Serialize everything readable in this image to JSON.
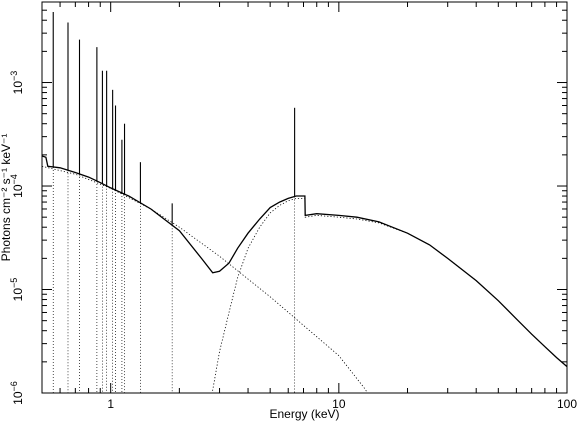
{
  "chart_data": {
    "type": "line",
    "title": "",
    "xlabel": "Energy (keV)",
    "ylabel": "Photons cm⁻² s⁻¹ keV⁻¹",
    "xscale": "log",
    "yscale": "log",
    "xlim": [
      0.5,
      100
    ],
    "ylim": [
      1e-06,
      0.006
    ],
    "grid": false,
    "legend": "none",
    "x_ticks": [
      {
        "value": 1,
        "label": "1"
      },
      {
        "value": 10,
        "label": "10"
      },
      {
        "value": 100,
        "label": "100"
      }
    ],
    "y_ticks": [
      {
        "value": 1e-06,
        "base": "10",
        "exp": "−6"
      },
      {
        "value": 1e-05,
        "base": "10",
        "exp": "−5"
      },
      {
        "value": 0.0001,
        "base": "10",
        "exp": "−4"
      },
      {
        "value": 0.001,
        "base": "10",
        "exp": "−3"
      }
    ],
    "series": [
      {
        "style": "solid",
        "color": "#000000",
        "points": [
          [
            0.5,
            0.000195
          ],
          [
            0.52,
            0.00019
          ],
          [
            0.53,
            0.000155
          ],
          [
            0.6,
            0.00015
          ],
          [
            0.7,
            0.000135
          ],
          [
            0.8,
            0.000122
          ],
          [
            0.9,
            0.000108
          ],
          [
            1.0,
            9.6e-05
          ],
          [
            1.2,
            8e-05
          ],
          [
            1.5,
            6e-05
          ],
          [
            2.0,
            3.7e-05
          ],
          [
            2.5,
            2e-05
          ],
          [
            2.8,
            1.45e-05
          ],
          [
            3.0,
            1.5e-05
          ],
          [
            3.3,
            1.8e-05
          ],
          [
            3.6,
            2.5e-05
          ],
          [
            4.0,
            3.5e-05
          ],
          [
            4.5,
            4.8e-05
          ],
          [
            5.0,
            6.2e-05
          ],
          [
            5.5,
            7e-05
          ],
          [
            6.0,
            7.6e-05
          ],
          [
            6.5,
            8e-05
          ],
          [
            7.1,
            8e-05
          ],
          [
            7.12,
            5.2e-05
          ],
          [
            8.0,
            5.4e-05
          ],
          [
            10.0,
            5.2e-05
          ],
          [
            12.0,
            5e-05
          ],
          [
            15.0,
            4.5e-05
          ],
          [
            20.0,
            3.5e-05
          ],
          [
            25.0,
            2.7e-05
          ],
          [
            30.0,
            2e-05
          ],
          [
            40.0,
            1.22e-05
          ],
          [
            50.0,
            7.8e-06
          ],
          [
            60.0,
            5.2e-06
          ],
          [
            70.0,
            3.7e-06
          ],
          [
            80.0,
            2.8e-06
          ],
          [
            90.0,
            2.2e-06
          ],
          [
            100.0,
            1.8e-06
          ]
        ]
      },
      {
        "style": "dotted",
        "color": "#000000",
        "points": [
          [
            0.5,
            0.000155
          ],
          [
            0.7,
            0.00013
          ],
          [
            1.0,
            9.5e-05
          ],
          [
            1.5,
            6e-05
          ],
          [
            2.0,
            4e-05
          ],
          [
            3.0,
            2.1e-05
          ],
          [
            5.0,
            8.5e-06
          ],
          [
            7.0,
            4.5e-06
          ],
          [
            10.0,
            2.3e-06
          ],
          [
            13.0,
            1.1e-06
          ],
          [
            14.0,
            8.5e-07
          ]
        ]
      },
      {
        "style": "dotted",
        "color": "#000000",
        "points": [
          [
            2.75,
            8.5e-07
          ],
          [
            3.0,
            2.5e-06
          ],
          [
            3.3,
            6e-06
          ],
          [
            3.6,
            1.3e-05
          ],
          [
            4.0,
            2.5e-05
          ],
          [
            4.5,
            4e-05
          ],
          [
            5.0,
            5.5e-05
          ],
          [
            5.5,
            6.5e-05
          ],
          [
            6.0,
            7.2e-05
          ],
          [
            6.5,
            7.6e-05
          ],
          [
            7.1,
            7.6e-05
          ],
          [
            7.12,
            5e-05
          ],
          [
            8.0,
            5.2e-05
          ],
          [
            10.0,
            5e-05
          ],
          [
            12.0,
            4.8e-05
          ],
          [
            15.0,
            4.4e-05
          ],
          [
            20.0,
            3.5e-05
          ],
          [
            25.0,
            2.7e-05
          ],
          [
            30.0,
            2e-05
          ],
          [
            40.0,
            1.22e-05
          ],
          [
            50.0,
            7.8e-06
          ],
          [
            60.0,
            5.2e-06
          ],
          [
            70.0,
            3.7e-06
          ],
          [
            80.0,
            2.8e-06
          ],
          [
            90.0,
            2.2e-06
          ],
          [
            100.0,
            1.8e-06
          ]
        ]
      }
    ],
    "emission_lines": [
      {
        "energy": 0.56,
        "peak": 0.0048
      },
      {
        "energy": 0.65,
        "peak": 0.0038
      },
      {
        "energy": 0.73,
        "peak": 0.0026
      },
      {
        "energy": 0.87,
        "peak": 0.0022
      },
      {
        "energy": 0.92,
        "peak": 0.0013
      },
      {
        "energy": 0.96,
        "peak": 0.0013
      },
      {
        "energy": 1.02,
        "peak": 0.00085
      },
      {
        "energy": 1.05,
        "peak": 0.0006
      },
      {
        "energy": 1.12,
        "peak": 0.00028
      },
      {
        "energy": 1.15,
        "peak": 0.0004
      },
      {
        "energy": 1.35,
        "peak": 0.00017
      },
      {
        "energy": 1.86,
        "peak": 6.8e-05
      },
      {
        "energy": 6.4,
        "peak": 0.00057
      }
    ]
  }
}
